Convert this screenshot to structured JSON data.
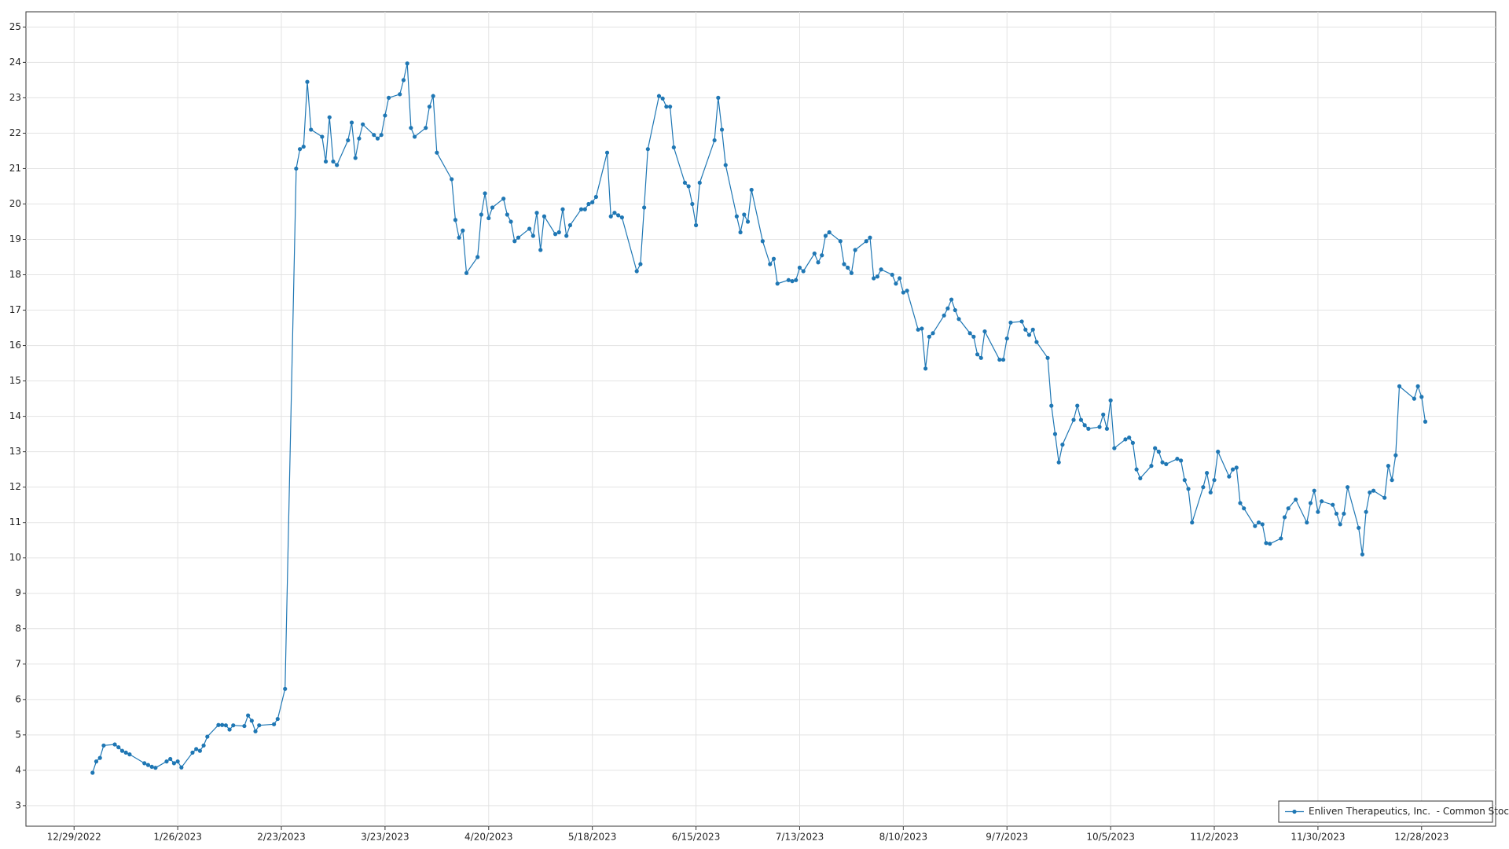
{
  "chart_data": {
    "type": "line",
    "x": [
      "1/3/2023",
      "1/4/2023",
      "1/5/2023",
      "1/6/2023",
      "1/9/2023",
      "1/10/2023",
      "1/11/2023",
      "1/12/2023",
      "1/13/2023",
      "1/17/2023",
      "1/18/2023",
      "1/19/2023",
      "1/20/2023",
      "1/23/2023",
      "1/24/2023",
      "1/25/2023",
      "1/26/2023",
      "1/27/2023",
      "1/30/2023",
      "1/31/2023",
      "2/1/2023",
      "2/2/2023",
      "2/3/2023",
      "2/6/2023",
      "2/7/2023",
      "2/8/2023",
      "2/9/2023",
      "2/10/2023",
      "2/13/2023",
      "2/14/2023",
      "2/15/2023",
      "2/16/2023",
      "2/17/2023",
      "2/21/2023",
      "2/22/2023",
      "2/24/2023",
      "2/27/2023",
      "2/28/2023",
      "3/1/2023",
      "3/2/2023",
      "3/3/2023",
      "3/6/2023",
      "3/7/2023",
      "3/8/2023",
      "3/9/2023",
      "3/10/2023",
      "3/13/2023",
      "3/14/2023",
      "3/15/2023",
      "3/16/2023",
      "3/17/2023",
      "3/20/2023",
      "3/21/2023",
      "3/22/2023",
      "3/23/2023",
      "3/24/2023",
      "3/27/2023",
      "3/28/2023",
      "3/29/2023",
      "3/30/2023",
      "3/31/2023",
      "4/3/2023",
      "4/4/2023",
      "4/5/2023",
      "4/6/2023",
      "4/10/2023",
      "4/11/2023",
      "4/12/2023",
      "4/13/2023",
      "4/14/2023",
      "4/17/2023",
      "4/18/2023",
      "4/19/2023",
      "4/20/2023",
      "4/21/2023",
      "4/24/2023",
      "4/25/2023",
      "4/26/2023",
      "4/27/2023",
      "4/28/2023",
      "5/1/2023",
      "5/2/2023",
      "5/3/2023",
      "5/4/2023",
      "5/5/2023",
      "5/8/2023",
      "5/9/2023",
      "5/10/2023",
      "5/11/2023",
      "5/12/2023",
      "5/15/2023",
      "5/16/2023",
      "5/17/2023",
      "5/18/2023",
      "5/19/2023",
      "5/22/2023",
      "5/23/2023",
      "5/24/2023",
      "5/25/2023",
      "5/26/2023",
      "5/30/2023",
      "5/31/2023",
      "6/1/2023",
      "6/2/2023",
      "6/5/2023",
      "6/6/2023",
      "6/7/2023",
      "6/8/2023",
      "6/9/2023",
      "6/12/2023",
      "6/13/2023",
      "6/14/2023",
      "6/15/2023",
      "6/16/2023",
      "6/20/2023",
      "6/21/2023",
      "6/22/2023",
      "6/23/2023",
      "6/26/2023",
      "6/27/2023",
      "6/28/2023",
      "6/29/2023",
      "6/30/2023",
      "7/3/2023",
      "7/5/2023",
      "7/6/2023",
      "7/7/2023",
      "7/10/2023",
      "7/11/2023",
      "7/12/2023",
      "7/13/2023",
      "7/14/2023",
      "7/17/2023",
      "7/18/2023",
      "7/19/2023",
      "7/20/2023",
      "7/21/2023",
      "7/24/2023",
      "7/25/2023",
      "7/26/2023",
      "7/27/2023",
      "7/28/2023",
      "7/31/2023",
      "8/1/2023",
      "8/2/2023",
      "8/3/2023",
      "8/4/2023",
      "8/7/2023",
      "8/8/2023",
      "8/9/2023",
      "8/10/2023",
      "8/11/2023",
      "8/14/2023",
      "8/15/2023",
      "8/16/2023",
      "8/17/2023",
      "8/18/2023",
      "8/21/2023",
      "8/22/2023",
      "8/23/2023",
      "8/24/2023",
      "8/25/2023",
      "8/28/2023",
      "8/29/2023",
      "8/30/2023",
      "8/31/2023",
      "9/1/2023",
      "9/5/2023",
      "9/6/2023",
      "9/7/2023",
      "9/8/2023",
      "9/11/2023",
      "9/12/2023",
      "9/13/2023",
      "9/14/2023",
      "9/15/2023",
      "9/18/2023",
      "9/19/2023",
      "9/20/2023",
      "9/21/2023",
      "9/22/2023",
      "9/25/2023",
      "9/26/2023",
      "9/27/2023",
      "9/28/2023",
      "9/29/2023",
      "10/2/2023",
      "10/3/2023",
      "10/4/2023",
      "10/5/2023",
      "10/6/2023",
      "10/9/2023",
      "10/10/2023",
      "10/11/2023",
      "10/12/2023",
      "10/13/2023",
      "10/16/2023",
      "10/17/2023",
      "10/18/2023",
      "10/19/2023",
      "10/20/2023",
      "10/23/2023",
      "10/24/2023",
      "10/25/2023",
      "10/26/2023",
      "10/27/2023",
      "10/30/2023",
      "10/31/2023",
      "11/1/2023",
      "11/2/2023",
      "11/3/2023",
      "11/6/2023",
      "11/7/2023",
      "11/8/2023",
      "11/9/2023",
      "11/10/2023",
      "11/13/2023",
      "11/14/2023",
      "11/15/2023",
      "11/16/2023",
      "11/17/2023",
      "11/20/2023",
      "11/21/2023",
      "11/22/2023",
      "11/24/2023",
      "11/27/2023",
      "11/28/2023",
      "11/29/2023",
      "11/30/2023",
      "12/1/2023",
      "12/4/2023",
      "12/5/2023",
      "12/6/2023",
      "12/7/2023",
      "12/8/2023",
      "12/11/2023",
      "12/12/2023",
      "12/13/2023",
      "12/14/2023",
      "12/15/2023",
      "12/18/2023",
      "12/19/2023",
      "12/20/2023",
      "12/21/2023",
      "12/22/2023",
      "12/26/2023",
      "12/27/2023",
      "12/28/2023",
      "12/29/2023"
    ],
    "series": [
      {
        "name": "Enliven Therapeutics, Inc.  - Common Stock",
        "color": "#1f77b4",
        "values": [
          3.93,
          4.25,
          4.35,
          4.7,
          4.73,
          4.65,
          4.55,
          4.5,
          4.45,
          4.2,
          4.15,
          4.1,
          4.07,
          4.25,
          4.32,
          4.2,
          4.25,
          4.08,
          4.5,
          4.6,
          4.55,
          4.7,
          4.95,
          5.28,
          5.28,
          5.27,
          5.15,
          5.27,
          5.25,
          5.55,
          5.4,
          5.1,
          5.27,
          5.3,
          5.45,
          6.3,
          21.0,
          21.55,
          21.62,
          23.45,
          22.1,
          21.9,
          21.2,
          22.45,
          21.2,
          21.1,
          21.8,
          22.3,
          21.3,
          21.85,
          22.25,
          21.95,
          21.85,
          21.95,
          22.5,
          23.0,
          23.1,
          23.5,
          23.97,
          22.15,
          21.9,
          22.15,
          22.75,
          23.05,
          21.45,
          20.7,
          19.55,
          19.05,
          19.25,
          18.05,
          18.5,
          19.7,
          20.3,
          19.6,
          19.9,
          20.15,
          19.7,
          19.5,
          18.95,
          19.05,
          19.3,
          19.1,
          19.75,
          18.7,
          19.65,
          19.15,
          19.2,
          19.85,
          19.1,
          19.4,
          19.85,
          19.85,
          20.0,
          20.05,
          20.2,
          21.45,
          19.65,
          19.75,
          19.68,
          19.62,
          18.1,
          18.3,
          19.9,
          21.55,
          23.05,
          22.98,
          22.75,
          22.75,
          21.6,
          20.6,
          20.5,
          20.0,
          19.4,
          20.6,
          21.8,
          23.0,
          22.1,
          21.1,
          19.65,
          19.2,
          19.7,
          19.5,
          20.4,
          18.95,
          18.3,
          18.45,
          17.75,
          17.85,
          17.82,
          17.85,
          18.2,
          18.1,
          18.6,
          18.35,
          18.55,
          19.1,
          19.2,
          18.95,
          18.3,
          18.2,
          18.05,
          18.7,
          18.95,
          19.05,
          17.9,
          17.95,
          18.15,
          18.0,
          17.75,
          17.9,
          17.5,
          17.55,
          16.45,
          16.48,
          15.35,
          16.25,
          16.35,
          16.85,
          17.05,
          17.3,
          17.0,
          16.75,
          16.35,
          16.25,
          15.75,
          15.65,
          16.4,
          15.6,
          15.6,
          16.2,
          16.65,
          16.68,
          16.45,
          16.3,
          16.45,
          16.1,
          15.65,
          14.3,
          13.5,
          12.7,
          13.2,
          13.9,
          14.3,
          13.9,
          13.75,
          13.65,
          13.7,
          14.05,
          13.65,
          14.45,
          13.1,
          13.35,
          13.4,
          13.25,
          12.5,
          12.25,
          12.6,
          13.1,
          13.0,
          12.7,
          12.65,
          12.8,
          12.75,
          12.2,
          11.95,
          11.0,
          12.0,
          12.4,
          11.85,
          12.2,
          13.0,
          12.3,
          12.5,
          12.55,
          11.55,
          11.4,
          10.9,
          11.0,
          10.95,
          10.42,
          10.4,
          10.55,
          11.15,
          11.4,
          11.65,
          11.0,
          11.55,
          11.9,
          11.3,
          11.6,
          11.5,
          11.25,
          10.95,
          11.25,
          12.0,
          10.85,
          10.1,
          11.3,
          11.85,
          11.9,
          11.7,
          12.6,
          12.2,
          12.9,
          14.85,
          14.5,
          14.85,
          14.55,
          13.85
        ]
      }
    ],
    "xlim": [
      "12/16/2022",
      "1/17/2024"
    ],
    "xticks": [
      "12/29/2022",
      "1/26/2023",
      "2/23/2023",
      "3/23/2023",
      "4/20/2023",
      "5/18/2023",
      "6/15/2023",
      "7/13/2023",
      "8/10/2023",
      "9/7/2023",
      "10/5/2023",
      "11/2/2023",
      "11/30/2023",
      "12/28/2023"
    ],
    "ylim": [
      2.42,
      25.43
    ],
    "yticks": [
      3,
      4,
      5,
      6,
      7,
      8,
      9,
      10,
      11,
      12,
      13,
      14,
      15,
      16,
      17,
      18,
      19,
      20,
      21,
      22,
      23,
      24,
      25
    ],
    "grid": true,
    "legend": "lower right"
  }
}
